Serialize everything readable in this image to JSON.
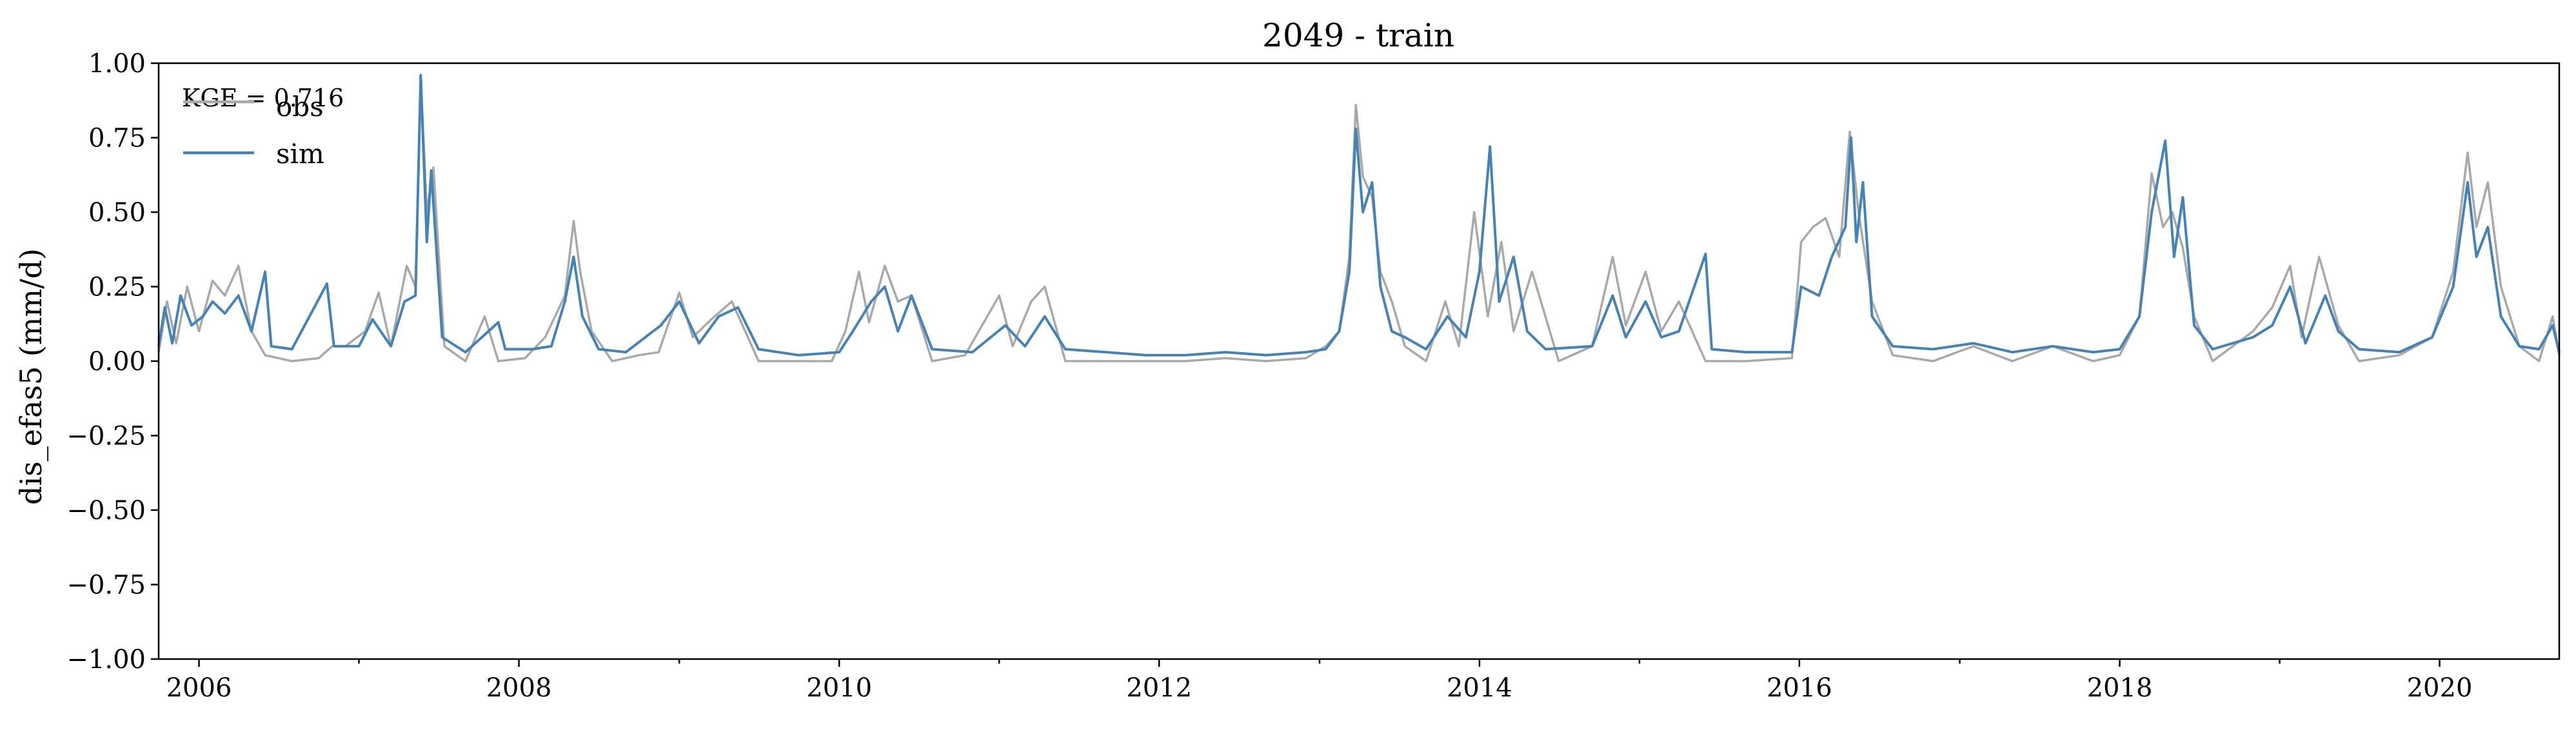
{
  "chart_data": {
    "type": "line",
    "title": "2049 - train",
    "xlabel": "",
    "ylabel": "dis_efas5 (mm/d)",
    "annotation": "KGE = 0.716",
    "xlim": [
      "2005-10-01",
      "2020-09-30"
    ],
    "ylim": [
      -1.0,
      1.0
    ],
    "grid": false,
    "legend_position": "top-left",
    "x_ticks": [
      "2006",
      "2008",
      "2010",
      "2012",
      "2014",
      "2016",
      "2018",
      "2020"
    ],
    "y_ticks": [
      "1.00",
      "0.75",
      "0.50",
      "0.25",
      "0.00",
      "−0.25",
      "−0.50",
      "−0.75",
      "−1.00"
    ],
    "series": [
      {
        "name": "obs",
        "color": "#a9a9a9",
        "points": [
          [
            "2005-10-01",
            0.03
          ],
          [
            "2005-10-20",
            0.2
          ],
          [
            "2005-11-10",
            0.06
          ],
          [
            "2005-12-05",
            0.25
          ],
          [
            "2006-01-01",
            0.1
          ],
          [
            "2006-02-01",
            0.27
          ],
          [
            "2006-03-01",
            0.22
          ],
          [
            "2006-04-01",
            0.32
          ],
          [
            "2006-05-01",
            0.1
          ],
          [
            "2006-06-01",
            0.02
          ],
          [
            "2006-08-01",
            0.0
          ],
          [
            "2006-10-01",
            0.01
          ],
          [
            "2006-11-01",
            0.05
          ],
          [
            "2006-12-01",
            0.05
          ],
          [
            "2007-01-15",
            0.1
          ],
          [
            "2007-02-15",
            0.23
          ],
          [
            "2007-03-15",
            0.05
          ],
          [
            "2007-04-20",
            0.32
          ],
          [
            "2007-05-10",
            0.25
          ],
          [
            "2007-05-22",
            0.95
          ],
          [
            "2007-06-05",
            0.5
          ],
          [
            "2007-06-20",
            0.65
          ],
          [
            "2007-07-15",
            0.05
          ],
          [
            "2007-09-01",
            0.0
          ],
          [
            "2007-10-15",
            0.15
          ],
          [
            "2007-11-15",
            0.0
          ],
          [
            "2008-01-15",
            0.01
          ],
          [
            "2008-03-01",
            0.08
          ],
          [
            "2008-04-15",
            0.22
          ],
          [
            "2008-05-05",
            0.47
          ],
          [
            "2008-05-20",
            0.3
          ],
          [
            "2008-06-15",
            0.1
          ],
          [
            "2008-08-01",
            0.0
          ],
          [
            "2008-10-01",
            0.02
          ],
          [
            "2008-11-15",
            0.03
          ],
          [
            "2009-01-01",
            0.23
          ],
          [
            "2009-02-01",
            0.08
          ],
          [
            "2009-03-15",
            0.14
          ],
          [
            "2009-05-01",
            0.2
          ],
          [
            "2009-07-01",
            0.0
          ],
          [
            "2009-10-01",
            0.0
          ],
          [
            "2009-12-15",
            0.0
          ],
          [
            "2010-01-15",
            0.1
          ],
          [
            "2010-02-15",
            0.3
          ],
          [
            "2010-03-10",
            0.13
          ],
          [
            "2010-04-15",
            0.32
          ],
          [
            "2010-05-15",
            0.2
          ],
          [
            "2010-06-15",
            0.22
          ],
          [
            "2010-08-01",
            0.0
          ],
          [
            "2010-10-15",
            0.02
          ],
          [
            "2011-01-01",
            0.22
          ],
          [
            "2011-02-01",
            0.05
          ],
          [
            "2011-03-15",
            0.2
          ],
          [
            "2011-04-15",
            0.25
          ],
          [
            "2011-06-01",
            0.0
          ],
          [
            "2011-09-01",
            0.0
          ],
          [
            "2011-12-01",
            0.0
          ],
          [
            "2012-03-01",
            0.0
          ],
          [
            "2012-06-01",
            0.01
          ],
          [
            "2012-09-01",
            0.0
          ],
          [
            "2012-12-01",
            0.01
          ],
          [
            "2013-01-15",
            0.05
          ],
          [
            "2013-02-15",
            0.1
          ],
          [
            "2013-03-10",
            0.35
          ],
          [
            "2013-03-25",
            0.86
          ],
          [
            "2013-04-10",
            0.62
          ],
          [
            "2013-05-01",
            0.55
          ],
          [
            "2013-05-20",
            0.3
          ],
          [
            "2013-06-15",
            0.2
          ],
          [
            "2013-07-15",
            0.05
          ],
          [
            "2013-09-01",
            0.0
          ],
          [
            "2013-10-15",
            0.2
          ],
          [
            "2013-11-15",
            0.05
          ],
          [
            "2013-12-20",
            0.5
          ],
          [
            "2014-01-20",
            0.15
          ],
          [
            "2014-02-20",
            0.4
          ],
          [
            "2014-03-20",
            0.1
          ],
          [
            "2014-05-01",
            0.3
          ],
          [
            "2014-07-01",
            0.0
          ],
          [
            "2014-09-15",
            0.05
          ],
          [
            "2014-11-01",
            0.35
          ],
          [
            "2014-12-01",
            0.12
          ],
          [
            "2015-01-15",
            0.3
          ],
          [
            "2015-02-20",
            0.1
          ],
          [
            "2015-04-01",
            0.2
          ],
          [
            "2015-06-01",
            0.0
          ],
          [
            "2015-09-01",
            0.0
          ],
          [
            "2015-12-15",
            0.01
          ],
          [
            "2016-01-05",
            0.4
          ],
          [
            "2016-02-01",
            0.45
          ],
          [
            "2016-03-01",
            0.48
          ],
          [
            "2016-04-01",
            0.35
          ],
          [
            "2016-04-25",
            0.77
          ],
          [
            "2016-05-15",
            0.5
          ],
          [
            "2016-06-15",
            0.2
          ],
          [
            "2016-08-01",
            0.02
          ],
          [
            "2016-11-01",
            0.0
          ],
          [
            "2017-02-01",
            0.05
          ],
          [
            "2017-05-01",
            0.0
          ],
          [
            "2017-08-01",
            0.05
          ],
          [
            "2017-11-01",
            0.0
          ],
          [
            "2018-01-01",
            0.02
          ],
          [
            "2018-02-15",
            0.15
          ],
          [
            "2018-03-15",
            0.63
          ],
          [
            "2018-04-10",
            0.45
          ],
          [
            "2018-05-01",
            0.5
          ],
          [
            "2018-05-25",
            0.38
          ],
          [
            "2018-06-20",
            0.15
          ],
          [
            "2018-08-01",
            0.0
          ],
          [
            "2018-11-01",
            0.1
          ],
          [
            "2018-12-15",
            0.18
          ],
          [
            "2019-01-25",
            0.32
          ],
          [
            "2019-02-20",
            0.08
          ],
          [
            "2019-04-01",
            0.35
          ],
          [
            "2019-05-15",
            0.12
          ],
          [
            "2019-07-01",
            0.0
          ],
          [
            "2019-10-01",
            0.02
          ],
          [
            "2019-12-15",
            0.08
          ],
          [
            "2020-02-01",
            0.3
          ],
          [
            "2020-03-05",
            0.7
          ],
          [
            "2020-03-25",
            0.45
          ],
          [
            "2020-04-20",
            0.6
          ],
          [
            "2020-05-20",
            0.25
          ],
          [
            "2020-07-01",
            0.05
          ],
          [
            "2020-08-15",
            0.0
          ],
          [
            "2020-09-15",
            0.15
          ],
          [
            "2020-09-30",
            0.02
          ]
        ]
      },
      {
        "name": "sim",
        "color": "#4682b4",
        "points": [
          [
            "2005-10-01",
            0.05
          ],
          [
            "2005-10-15",
            0.18
          ],
          [
            "2005-11-01",
            0.06
          ],
          [
            "2005-11-20",
            0.22
          ],
          [
            "2005-12-15",
            0.12
          ],
          [
            "2006-01-10",
            0.15
          ],
          [
            "2006-02-01",
            0.2
          ],
          [
            "2006-03-01",
            0.16
          ],
          [
            "2006-04-01",
            0.22
          ],
          [
            "2006-05-01",
            0.1
          ],
          [
            "2006-06-01",
            0.3
          ],
          [
            "2006-06-15",
            0.05
          ],
          [
            "2006-08-01",
            0.04
          ],
          [
            "2006-10-20",
            0.26
          ],
          [
            "2006-11-05",
            0.05
          ],
          [
            "2007-01-01",
            0.05
          ],
          [
            "2007-02-01",
            0.14
          ],
          [
            "2007-03-15",
            0.05
          ],
          [
            "2007-04-15",
            0.2
          ],
          [
            "2007-05-10",
            0.22
          ],
          [
            "2007-05-22",
            0.96
          ],
          [
            "2007-06-05",
            0.4
          ],
          [
            "2007-06-15",
            0.64
          ],
          [
            "2007-07-10",
            0.08
          ],
          [
            "2007-09-01",
            0.03
          ],
          [
            "2007-11-15",
            0.13
          ],
          [
            "2007-12-01",
            0.04
          ],
          [
            "2008-02-01",
            0.04
          ],
          [
            "2008-03-15",
            0.05
          ],
          [
            "2008-04-15",
            0.2
          ],
          [
            "2008-05-05",
            0.35
          ],
          [
            "2008-05-25",
            0.15
          ],
          [
            "2008-07-01",
            0.04
          ],
          [
            "2008-09-01",
            0.03
          ],
          [
            "2008-11-20",
            0.12
          ],
          [
            "2009-01-01",
            0.2
          ],
          [
            "2009-02-15",
            0.06
          ],
          [
            "2009-04-01",
            0.15
          ],
          [
            "2009-05-15",
            0.18
          ],
          [
            "2009-07-01",
            0.04
          ],
          [
            "2009-10-01",
            0.02
          ],
          [
            "2010-01-01",
            0.03
          ],
          [
            "2010-02-01",
            0.1
          ],
          [
            "2010-03-15",
            0.2
          ],
          [
            "2010-04-15",
            0.25
          ],
          [
            "2010-05-15",
            0.1
          ],
          [
            "2010-06-15",
            0.22
          ],
          [
            "2010-08-01",
            0.04
          ],
          [
            "2010-11-01",
            0.03
          ],
          [
            "2011-01-15",
            0.12
          ],
          [
            "2011-03-01",
            0.05
          ],
          [
            "2011-04-15",
            0.15
          ],
          [
            "2011-06-01",
            0.04
          ],
          [
            "2011-09-01",
            0.03
          ],
          [
            "2011-12-01",
            0.02
          ],
          [
            "2012-03-01",
            0.02
          ],
          [
            "2012-06-01",
            0.03
          ],
          [
            "2012-09-01",
            0.02
          ],
          [
            "2012-12-01",
            0.03
          ],
          [
            "2013-01-15",
            0.04
          ],
          [
            "2013-02-15",
            0.1
          ],
          [
            "2013-03-10",
            0.3
          ],
          [
            "2013-03-25",
            0.78
          ],
          [
            "2013-04-10",
            0.5
          ],
          [
            "2013-05-01",
            0.6
          ],
          [
            "2013-05-20",
            0.25
          ],
          [
            "2013-06-15",
            0.1
          ],
          [
            "2013-07-15",
            0.08
          ],
          [
            "2013-09-01",
            0.04
          ],
          [
            "2013-10-20",
            0.15
          ],
          [
            "2013-12-01",
            0.08
          ],
          [
            "2014-01-01",
            0.3
          ],
          [
            "2014-01-25",
            0.72
          ],
          [
            "2014-02-15",
            0.2
          ],
          [
            "2014-03-20",
            0.35
          ],
          [
            "2014-04-20",
            0.1
          ],
          [
            "2014-06-01",
            0.04
          ],
          [
            "2014-09-15",
            0.05
          ],
          [
            "2014-11-01",
            0.22
          ],
          [
            "2014-12-01",
            0.08
          ],
          [
            "2015-01-15",
            0.2
          ],
          [
            "2015-02-20",
            0.08
          ],
          [
            "2015-04-01",
            0.1
          ],
          [
            "2015-06-01",
            0.36
          ],
          [
            "2015-06-15",
            0.04
          ],
          [
            "2015-09-01",
            0.03
          ],
          [
            "2015-12-15",
            0.03
          ],
          [
            "2016-01-05",
            0.25
          ],
          [
            "2016-02-15",
            0.22
          ],
          [
            "2016-03-15",
            0.35
          ],
          [
            "2016-04-15",
            0.45
          ],
          [
            "2016-04-28",
            0.75
          ],
          [
            "2016-05-10",
            0.4
          ],
          [
            "2016-05-25",
            0.6
          ],
          [
            "2016-06-15",
            0.15
          ],
          [
            "2016-08-01",
            0.05
          ],
          [
            "2016-11-01",
            0.04
          ],
          [
            "2017-02-01",
            0.06
          ],
          [
            "2017-05-01",
            0.03
          ],
          [
            "2017-08-01",
            0.05
          ],
          [
            "2017-11-01",
            0.03
          ],
          [
            "2018-01-01",
            0.04
          ],
          [
            "2018-02-15",
            0.15
          ],
          [
            "2018-03-15",
            0.5
          ],
          [
            "2018-04-15",
            0.74
          ],
          [
            "2018-05-05",
            0.35
          ],
          [
            "2018-05-25",
            0.55
          ],
          [
            "2018-06-20",
            0.12
          ],
          [
            "2018-08-01",
            0.04
          ],
          [
            "2018-11-01",
            0.08
          ],
          [
            "2018-12-15",
            0.12
          ],
          [
            "2019-01-25",
            0.25
          ],
          [
            "2019-03-01",
            0.06
          ],
          [
            "2019-04-15",
            0.22
          ],
          [
            "2019-05-15",
            0.1
          ],
          [
            "2019-07-01",
            0.04
          ],
          [
            "2019-10-01",
            0.03
          ],
          [
            "2019-12-15",
            0.08
          ],
          [
            "2020-02-01",
            0.25
          ],
          [
            "2020-03-05",
            0.6
          ],
          [
            "2020-03-25",
            0.35
          ],
          [
            "2020-04-20",
            0.45
          ],
          [
            "2020-05-20",
            0.15
          ],
          [
            "2020-07-01",
            0.05
          ],
          [
            "2020-08-15",
            0.04
          ],
          [
            "2020-09-15",
            0.12
          ],
          [
            "2020-09-30",
            0.03
          ]
        ]
      }
    ]
  }
}
